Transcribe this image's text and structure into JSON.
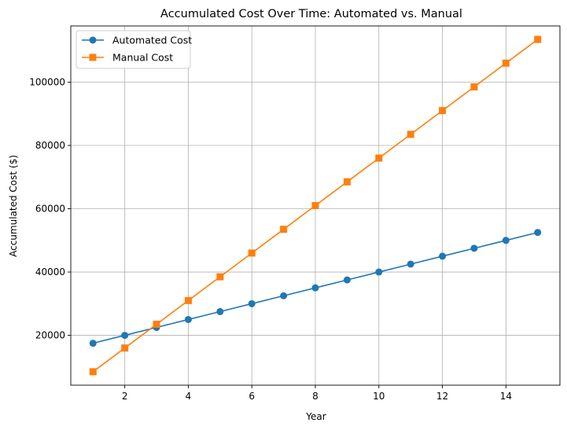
{
  "chart_data": {
    "type": "line",
    "title": "Accumulated Cost Over Time: Automated vs. Manual",
    "xlabel": "Year",
    "ylabel": "Accumulated Cost ($)",
    "xlim": [
      0.3,
      15.7
    ],
    "ylim": [
      4250,
      117750
    ],
    "x_ticks": [
      2,
      4,
      6,
      8,
      10,
      12,
      14
    ],
    "x_tick_labels": [
      "2",
      "4",
      "6",
      "8",
      "10",
      "12",
      "14"
    ],
    "y_ticks": [
      20000,
      40000,
      60000,
      80000,
      100000
    ],
    "y_tick_labels": [
      "20000",
      "40000",
      "60000",
      "80000",
      "100000"
    ],
    "grid": true,
    "legend_position": "top-left",
    "x": [
      1,
      2,
      3,
      4,
      5,
      6,
      7,
      8,
      9,
      10,
      11,
      12,
      13,
      14,
      15
    ],
    "series": [
      {
        "name": "Automated Cost",
        "color": "#1f77b4",
        "marker": "circle",
        "values": [
          17500,
          20000,
          22500,
          25000,
          27500,
          30000,
          32500,
          35000,
          37500,
          40000,
          42500,
          45000,
          47500,
          50000,
          52500
        ]
      },
      {
        "name": "Manual Cost",
        "color": "#ff7f0e",
        "marker": "square",
        "values": [
          8500,
          16000,
          23500,
          31000,
          38500,
          46000,
          53500,
          61000,
          68500,
          76000,
          83500,
          91000,
          98500,
          106000,
          113500
        ]
      }
    ]
  }
}
